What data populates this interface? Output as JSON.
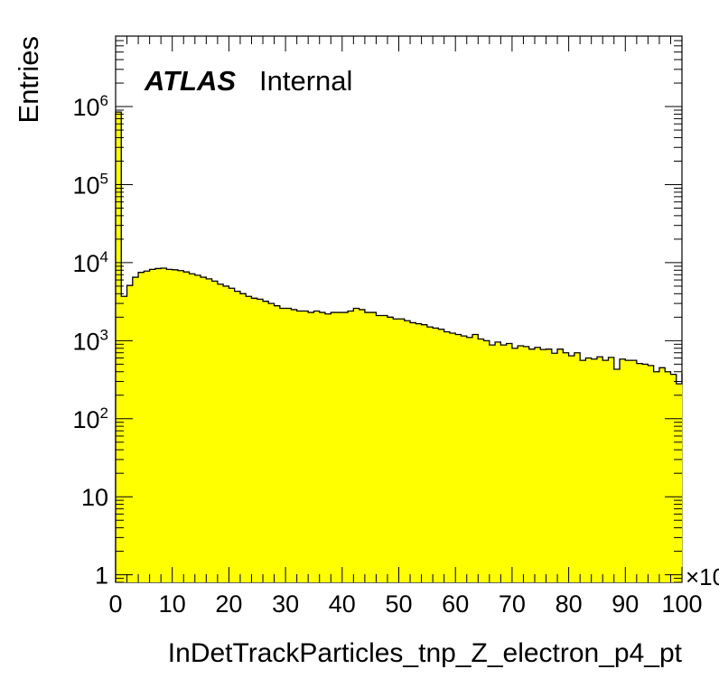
{
  "chart_data": {
    "type": "histogram",
    "title": "",
    "xlabel": "InDetTrackParticles_tnp_Z_electron_p4_pt",
    "ylabel": "Entries",
    "x_multiplier_label": "×10",
    "annotation": {
      "atlas": "ATLAS",
      "status": "Internal"
    },
    "xlim": [
      0,
      100
    ],
    "ylim": [
      0.8,
      8000000
    ],
    "y_scale": "log",
    "fill_color": "#ffff00",
    "line_color": "#000000",
    "x_ticks": [
      {
        "value": 0,
        "label": "0"
      },
      {
        "value": 10,
        "label": "10"
      },
      {
        "value": 20,
        "label": "20"
      },
      {
        "value": 30,
        "label": "30"
      },
      {
        "value": 40,
        "label": "40"
      },
      {
        "value": 50,
        "label": "50"
      },
      {
        "value": 60,
        "label": "60"
      },
      {
        "value": 70,
        "label": "70"
      },
      {
        "value": 80,
        "label": "80"
      },
      {
        "value": 90,
        "label": "90"
      },
      {
        "value": 100,
        "label": "100"
      }
    ],
    "y_ticks": [
      {
        "value": 1,
        "base": "1",
        "exp": ""
      },
      {
        "value": 10,
        "base": "10",
        "exp": ""
      },
      {
        "value": 100,
        "base": "10",
        "exp": "2"
      },
      {
        "value": 1000,
        "base": "10",
        "exp": "3"
      },
      {
        "value": 10000,
        "base": "10",
        "exp": "4"
      },
      {
        "value": 100000,
        "base": "10",
        "exp": "5"
      },
      {
        "value": 1000000,
        "base": "10",
        "exp": "6"
      }
    ],
    "bins": [
      0,
      1,
      2,
      3,
      4,
      5,
      6,
      7,
      8,
      9,
      10,
      11,
      12,
      13,
      14,
      15,
      16,
      17,
      18,
      19,
      20,
      21,
      22,
      23,
      24,
      25,
      26,
      27,
      28,
      29,
      30,
      31,
      32,
      33,
      34,
      35,
      36,
      37,
      38,
      39,
      40,
      41,
      42,
      43,
      44,
      45,
      46,
      47,
      48,
      49,
      50,
      51,
      52,
      53,
      54,
      55,
      56,
      57,
      58,
      59,
      60,
      61,
      62,
      63,
      64,
      65,
      66,
      67,
      68,
      69,
      70,
      71,
      72,
      73,
      74,
      75,
      76,
      77,
      78,
      79,
      80,
      81,
      82,
      83,
      84,
      85,
      86,
      87,
      88,
      89,
      90,
      91,
      92,
      93,
      94,
      95,
      96,
      97,
      98,
      99,
      100
    ],
    "values": [
      850000,
      3700,
      5100,
      6500,
      7500,
      7800,
      8200,
      8400,
      8500,
      8200,
      8100,
      7900,
      7600,
      7200,
      6900,
      6500,
      6200,
      5800,
      5300,
      5000,
      4700,
      4300,
      4000,
      3700,
      3500,
      3400,
      3200,
      3000,
      2800,
      2600,
      2600,
      2500,
      2400,
      2400,
      2300,
      2400,
      2300,
      2200,
      2300,
      2300,
      2300,
      2400,
      2600,
      2500,
      2300,
      2300,
      2100,
      2100,
      2000,
      1900,
      1900,
      1800,
      1700,
      1650,
      1600,
      1500,
      1450,
      1400,
      1300,
      1250,
      1200,
      1150,
      1100,
      1200,
      1050,
      1000,
      880,
      960,
      880,
      920,
      800,
      860,
      840,
      780,
      820,
      770,
      780,
      690,
      780,
      700,
      640,
      700,
      560,
      600,
      580,
      620,
      560,
      610,
      430,
      580,
      560,
      560,
      510,
      500,
      480,
      400,
      450,
      400,
      370,
      280,
      380
    ]
  }
}
